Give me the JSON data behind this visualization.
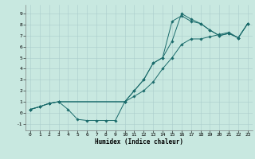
{
  "xlabel": "Humidex (Indice chaleur)",
  "xlim": [
    -0.5,
    23.5
  ],
  "ylim": [
    -1.6,
    9.8
  ],
  "xticks": [
    0,
    1,
    2,
    3,
    4,
    5,
    6,
    7,
    8,
    9,
    10,
    11,
    12,
    13,
    14,
    15,
    16,
    17,
    18,
    19,
    20,
    21,
    22,
    23
  ],
  "yticks": [
    -1,
    0,
    1,
    2,
    3,
    4,
    5,
    6,
    7,
    8,
    9
  ],
  "background_color": "#c8e8e0",
  "grid_color": "#aacccc",
  "line_color": "#1a6b6b",
  "curve1_x": [
    0,
    1,
    2,
    3,
    4,
    5,
    6,
    7,
    8,
    9,
    10,
    11,
    12,
    13,
    14,
    15,
    16,
    17,
    18,
    19,
    20,
    21,
    22,
    23
  ],
  "curve1_y": [
    0.3,
    0.55,
    0.85,
    1.0,
    0.3,
    -0.6,
    -0.7,
    -0.7,
    -0.7,
    -0.7,
    1.0,
    2.0,
    3.0,
    4.5,
    5.0,
    8.3,
    8.8,
    8.3,
    8.1,
    7.5,
    7.0,
    7.2,
    6.8,
    8.1
  ],
  "curve2_x": [
    0,
    1,
    2,
    3,
    10,
    11,
    12,
    13,
    14,
    15,
    16,
    17,
    18,
    19,
    20,
    21,
    22,
    23
  ],
  "curve2_y": [
    0.3,
    0.55,
    0.85,
    1.0,
    1.0,
    2.0,
    3.0,
    4.5,
    5.0,
    6.5,
    9.0,
    8.5,
    8.1,
    7.5,
    7.0,
    7.2,
    6.8,
    8.1
  ],
  "curve3_x": [
    0,
    1,
    2,
    3,
    10,
    11,
    12,
    13,
    14,
    15,
    16,
    17,
    18,
    19,
    20,
    21,
    22,
    23
  ],
  "curve3_y": [
    0.3,
    0.55,
    0.85,
    1.0,
    1.0,
    1.5,
    2.0,
    2.8,
    4.0,
    5.0,
    6.2,
    6.7,
    6.7,
    6.9,
    7.1,
    7.3,
    6.8,
    8.1
  ]
}
